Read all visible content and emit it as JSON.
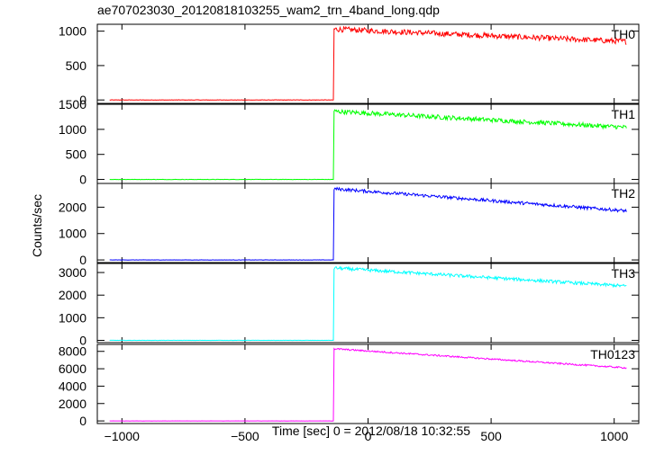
{
  "chart_data": {
    "type": "line",
    "title": "ae707023030_20120818103255_wam2_trn_4band_long.qdp",
    "xlabel": "Time [sec] 0 = 2012/08/18 10:32:55",
    "ylabel": "Counts/sec",
    "xlim": [
      -1100,
      1100
    ],
    "x_ticks": [
      -1000,
      -500,
      0,
      500,
      1000
    ],
    "x_tick_labels": [
      "−1000",
      "−500",
      "0",
      "500",
      "1000"
    ],
    "grid": false,
    "panels": [
      {
        "name": "TH0",
        "color": "#ff0000",
        "ylim": [
          -50,
          1100
        ],
        "y_ticks": [
          0,
          500,
          1000
        ],
        "y_tick_labels": [
          "0",
          "500",
          "1000"
        ],
        "background": 0,
        "onset": -140,
        "peak": 1030,
        "end": 850,
        "noise": 40
      },
      {
        "name": "TH1",
        "color": "#00ff00",
        "ylim": [
          -80,
          1500
        ],
        "y_ticks": [
          0,
          500,
          1000,
          1500
        ],
        "y_tick_labels": [
          "0",
          "500",
          "1000",
          "1500"
        ],
        "background": 0,
        "onset": -140,
        "peak": 1360,
        "end": 1040,
        "noise": 45
      },
      {
        "name": "TH2",
        "color": "#0000ff",
        "ylim": [
          -100,
          2900
        ],
        "y_ticks": [
          0,
          1000,
          2000
        ],
        "y_tick_labels": [
          "0",
          "1000",
          "2000"
        ],
        "background": 0,
        "onset": -140,
        "peak": 2700,
        "end": 1860,
        "noise": 60
      },
      {
        "name": "TH3",
        "color": "#00ffff",
        "ylim": [
          -100,
          3400
        ],
        "y_ticks": [
          0,
          1000,
          2000,
          3000
        ],
        "y_tick_labels": [
          "0",
          "1000",
          "2000",
          "3000"
        ],
        "background": 0,
        "onset": -140,
        "peak": 3200,
        "end": 2400,
        "noise": 70
      },
      {
        "name": "TH0123",
        "color": "#ff00ff",
        "ylim": [
          -300,
          8800
        ],
        "y_ticks": [
          0,
          2000,
          4000,
          6000,
          8000
        ],
        "y_tick_labels": [
          "0",
          "2000",
          "4000",
          "6000",
          "8000"
        ],
        "background": 0,
        "onset": -140,
        "peak": 8300,
        "end": 6100,
        "noise": 90
      }
    ]
  }
}
